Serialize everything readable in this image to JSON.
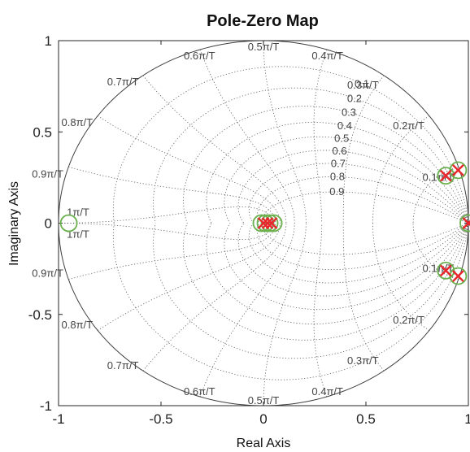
{
  "chart_data": {
    "type": "scatter",
    "title": "Pole-Zero Map",
    "xlabel": "Real Axis",
    "ylabel": "Imaginary Axis",
    "xlim": [
      -1,
      1
    ],
    "ylim": [
      -1,
      1
    ],
    "xticks": [
      "-1",
      "-0.5",
      "0",
      "0.5",
      "1"
    ],
    "yticks": [
      "-1",
      "-0.5",
      "0",
      "0.5",
      "1"
    ],
    "grid": "zgrid",
    "damping_labels": [
      "0.1",
      "0.2",
      "0.3",
      "0.4",
      "0.5",
      "0.6",
      "0.7",
      "0.8",
      "0.9"
    ],
    "wn_labels_upper": [
      "0.1π/T",
      "0.2π/T",
      "0.3π/T",
      "0.4π/T",
      "0.5π/T",
      "0.6π/T",
      "0.7π/T",
      "0.8π/T",
      "0.9π/T",
      "1π/T"
    ],
    "wn_labels_lower": [
      "0.1π/T",
      "0.2π/T",
      "0.3π/T",
      "0.4π/T",
      "0.5π/T",
      "0.6π/T",
      "0.7π/T",
      "0.8π/T",
      "0.9π/T",
      "1π/T"
    ],
    "series": [
      {
        "marker": "x",
        "color": "#e8262b",
        "points": [
          [
            0.0,
            0.0
          ],
          [
            0.02,
            0.0
          ],
          [
            0.04,
            0.0
          ],
          [
            0.89,
            0.26
          ],
          [
            0.89,
            -0.26
          ],
          [
            0.95,
            0.29
          ],
          [
            0.95,
            -0.29
          ],
          [
            1.0,
            0.0
          ]
        ]
      },
      {
        "marker": "o",
        "color": "#6ab04c",
        "points": [
          [
            -0.95,
            0.0
          ],
          [
            -0.01,
            0.0
          ],
          [
            0.01,
            0.0
          ],
          [
            0.03,
            0.0
          ],
          [
            0.05,
            0.0
          ],
          [
            0.89,
            0.26
          ],
          [
            0.89,
            -0.26
          ],
          [
            0.95,
            0.29
          ],
          [
            0.95,
            -0.29
          ],
          [
            1.0,
            0.0
          ]
        ]
      }
    ]
  }
}
